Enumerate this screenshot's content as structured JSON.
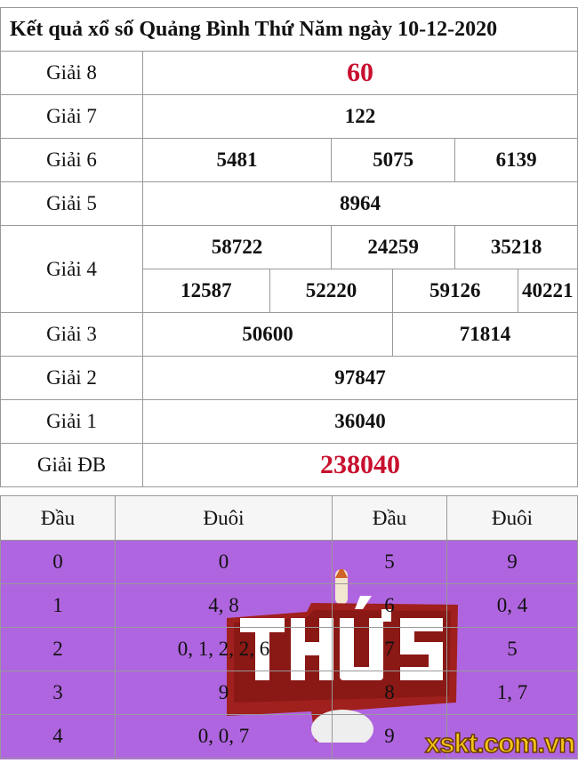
{
  "title": "Kết quả xổ số Quảng Bình Thứ Năm ngày 10-12-2020",
  "prizes": {
    "g8": {
      "label": "Giải 8",
      "values": [
        "60"
      ]
    },
    "g7": {
      "label": "Giải 7",
      "values": [
        "122"
      ]
    },
    "g6": {
      "label": "Giải 6",
      "values": [
        "5481",
        "5075",
        "6139"
      ]
    },
    "g5": {
      "label": "Giải 5",
      "values": [
        "8964"
      ]
    },
    "g4": {
      "label": "Giải 4",
      "values": [
        "58722",
        "24259",
        "35218",
        "12587",
        "52220",
        "59126",
        "40221"
      ]
    },
    "g3": {
      "label": "Giải 3",
      "values": [
        "50600",
        "71814"
      ]
    },
    "g2": {
      "label": "Giải 2",
      "values": [
        "97847"
      ]
    },
    "g1": {
      "label": "Giải 1",
      "values": [
        "36040"
      ]
    },
    "db": {
      "label": "Giải ĐB",
      "values": [
        "238040"
      ]
    }
  },
  "loto": {
    "headers": [
      "Đầu",
      "Đuôi",
      "Đầu",
      "Đuôi"
    ],
    "rows": [
      [
        "0",
        "0",
        "5",
        "9"
      ],
      [
        "1",
        "4, 8",
        "6",
        "0, 4"
      ],
      [
        "2",
        "0, 1, 2, 2, 6",
        "7",
        "5"
      ],
      [
        "3",
        "9",
        "8",
        "1, 7"
      ],
      [
        "4",
        "0, 0, 7",
        "9",
        ""
      ]
    ]
  },
  "overlay_logo": "THỨ 5",
  "watermark": "xskt.com.vn",
  "colors": {
    "highlight_red": "#c8102e",
    "loto_bg": "#b065e0",
    "logo_red": "#a0201e",
    "watermark": "#f5c518"
  }
}
